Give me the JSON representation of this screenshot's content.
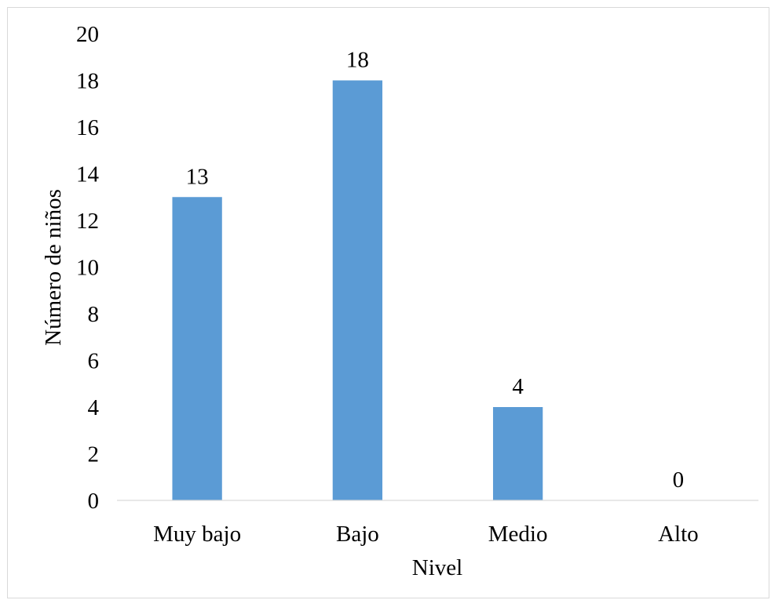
{
  "chart_data": {
    "type": "bar",
    "categories": [
      "Muy bajo",
      "Bajo",
      "Medio",
      "Alto"
    ],
    "values": [
      13,
      18,
      4,
      0
    ],
    "data_labels": [
      "13",
      "18",
      "4",
      "0"
    ],
    "xlabel": "Nivel",
    "ylabel": "Número de niños",
    "ylim": [
      0,
      20
    ],
    "yticks": [
      0,
      2,
      4,
      6,
      8,
      10,
      12,
      14,
      16,
      18,
      20
    ],
    "grid": false,
    "legend": "none",
    "bar_color": "#5b9bd5",
    "axis_color": "#d9d9d9"
  }
}
